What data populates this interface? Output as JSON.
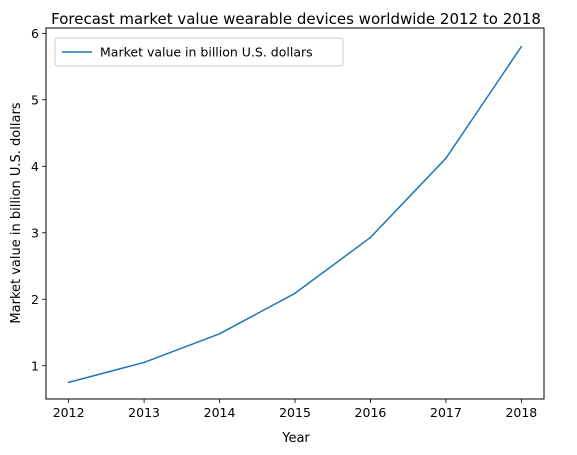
{
  "chart_data": {
    "type": "line",
    "title": "Forecast market value wearable devices worldwide 2012 to 2018",
    "xlabel": "Year",
    "ylabel": "Market value in billion U.S. dollars",
    "x": [
      2012,
      2013,
      2014,
      2015,
      2016,
      2017,
      2018
    ],
    "x_ticks": [
      "2012",
      "2013",
      "2014",
      "2015",
      "2016",
      "2017",
      "2018"
    ],
    "y_ticks": [
      "1",
      "2",
      "3",
      "4",
      "5",
      "6"
    ],
    "xlim": [
      2011.7,
      2018.3
    ],
    "ylim": [
      0.5,
      6.08
    ],
    "series": [
      {
        "name": "Market value in billion U.S. dollars",
        "values": [
          0.75,
          1.05,
          1.48,
          2.09,
          2.93,
          4.12,
          5.8
        ]
      }
    ],
    "legend_position": "upper-left",
    "grid": false,
    "colors": {
      "series_0": "#1f77b4",
      "axes": "#000000",
      "background": "#ffffff"
    }
  }
}
